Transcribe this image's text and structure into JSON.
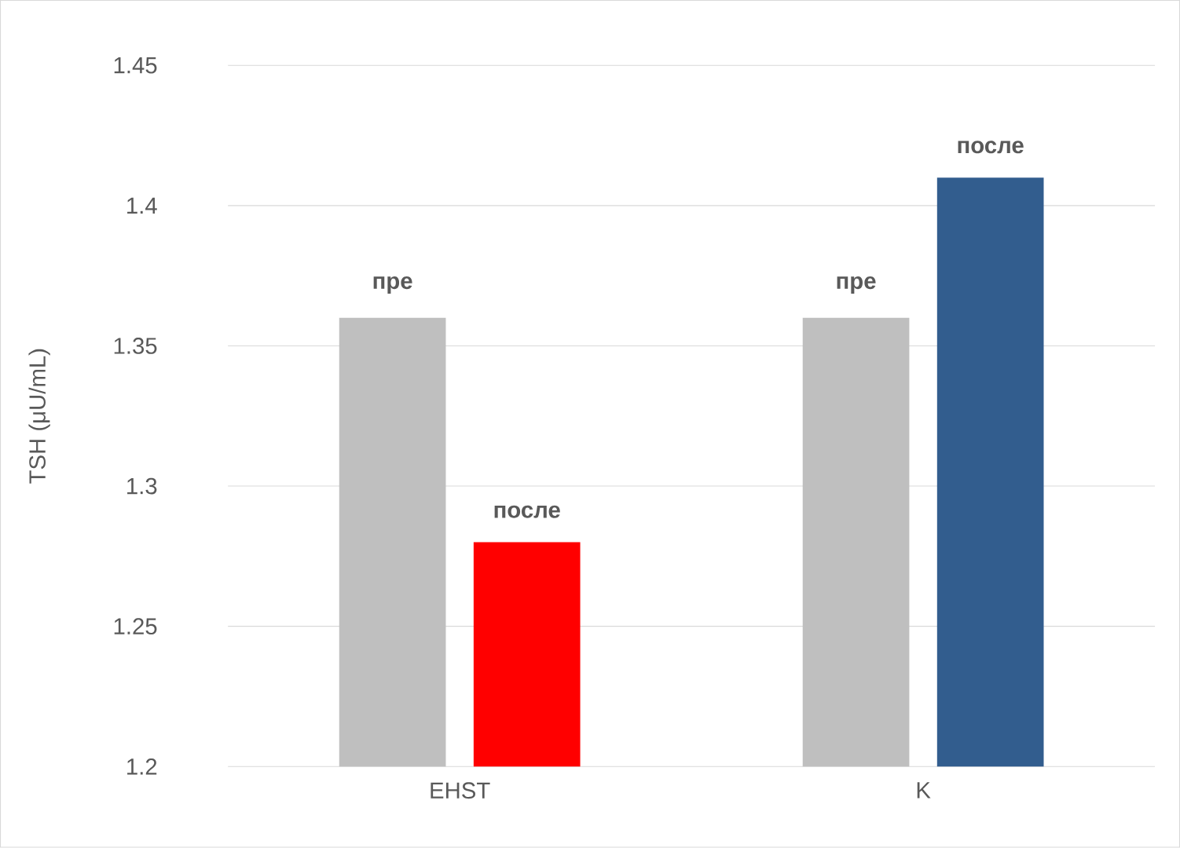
{
  "chart_data": {
    "type": "bar",
    "ylabel": "TSH (μU/mL)",
    "categories": [
      "EHST",
      "K"
    ],
    "series": [
      {
        "name": "пре",
        "color": "#bfbfbf",
        "values": [
          1.36,
          1.36
        ]
      },
      {
        "name": "после",
        "colors": [
          "#ff0000",
          "#325d8e"
        ],
        "values": [
          1.28,
          1.41
        ]
      }
    ],
    "ylim": [
      1.2,
      1.45
    ],
    "yticks": [
      1.2,
      1.25,
      1.3,
      1.35,
      1.4,
      1.45
    ],
    "grid": "y"
  }
}
